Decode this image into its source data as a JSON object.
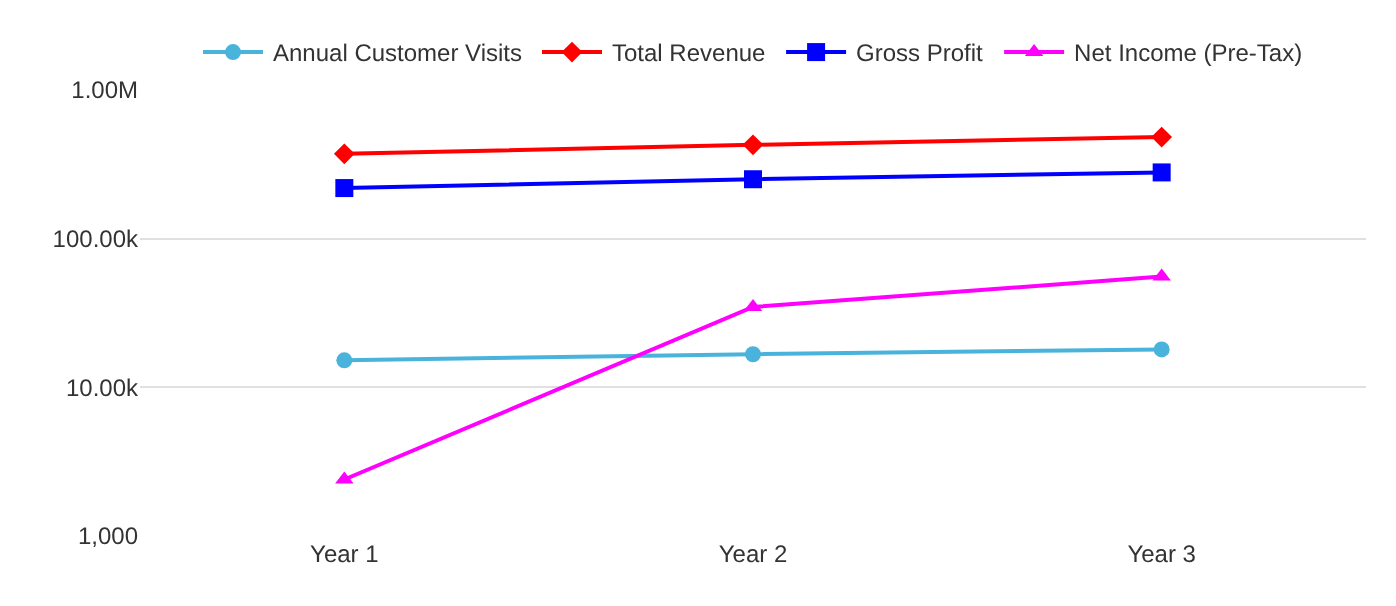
{
  "chart_data": {
    "type": "line",
    "categories": [
      "Year 1",
      "Year 2",
      "Year 3"
    ],
    "series": [
      {
        "name": "Annual Customer Visits",
        "color": "#4ab3dc",
        "marker": "circle",
        "values": [
          15200,
          16700,
          18000
        ]
      },
      {
        "name": "Total Revenue",
        "color": "#ff0000",
        "marker": "diamond",
        "values": [
          372000,
          428000,
          482000
        ]
      },
      {
        "name": "Gross Profit",
        "color": "#0000ff",
        "marker": "square",
        "values": [
          219000,
          251000,
          279000
        ]
      },
      {
        "name": "Net Income (Pre-Tax)",
        "color": "#ff00ff",
        "marker": "triangle",
        "values": [
          2400,
          34700,
          55600
        ]
      }
    ],
    "log": "y",
    "ylim": [
      1000,
      1000000
    ],
    "yticks": [
      {
        "value": 1000,
        "label": "1,000"
      },
      {
        "value": 10000,
        "label": "10.00k"
      },
      {
        "value": 100000,
        "label": "100.00k"
      },
      {
        "value": 1000000,
        "label": "1.00M"
      }
    ],
    "grid": "y",
    "legend": "top"
  }
}
